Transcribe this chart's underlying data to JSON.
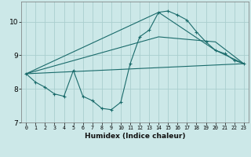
{
  "xlabel": "Humidex (Indice chaleur)",
  "bg_color": "#cce8e8",
  "grid_color": "#aacece",
  "line_color": "#1a6b6b",
  "xlim": [
    -0.5,
    23.5
  ],
  "ylim": [
    7.0,
    10.6
  ],
  "yticks": [
    7,
    8,
    9,
    10
  ],
  "xticks": [
    0,
    1,
    2,
    3,
    4,
    5,
    6,
    7,
    8,
    9,
    10,
    11,
    12,
    13,
    14,
    15,
    16,
    17,
    18,
    19,
    20,
    21,
    22,
    23
  ],
  "series1_x": [
    0,
    1,
    2,
    3,
    4,
    5,
    6,
    7,
    8,
    9,
    10,
    11,
    12,
    13,
    14,
    15,
    16,
    17,
    18,
    19,
    20,
    21,
    22,
    23
  ],
  "series1_y": [
    8.45,
    8.2,
    8.05,
    7.85,
    7.78,
    8.55,
    7.78,
    7.65,
    7.42,
    7.38,
    7.6,
    8.75,
    9.55,
    9.75,
    10.28,
    10.32,
    10.2,
    10.05,
    9.7,
    9.4,
    9.15,
    9.05,
    8.85,
    8.75
  ],
  "series2_x": [
    0,
    23
  ],
  "series2_y": [
    8.45,
    8.75
  ],
  "series3_x": [
    0,
    14,
    20,
    23
  ],
  "series3_y": [
    8.45,
    9.55,
    9.4,
    8.75
  ],
  "series4_x": [
    0,
    14,
    20,
    23
  ],
  "series4_y": [
    8.45,
    10.28,
    9.15,
    8.75
  ]
}
